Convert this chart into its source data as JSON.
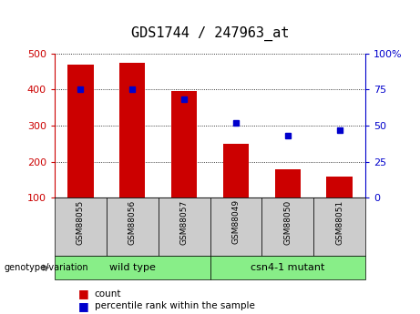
{
  "title": "GDS1744 / 247963_at",
  "categories": [
    "GSM88055",
    "GSM88056",
    "GSM88057",
    "GSM88049",
    "GSM88050",
    "GSM88051"
  ],
  "counts": [
    470,
    475,
    395,
    250,
    180,
    158
  ],
  "percentiles": [
    75,
    75,
    68,
    52,
    43,
    47
  ],
  "ylim_left": [
    100,
    500
  ],
  "ylim_right": [
    0,
    100
  ],
  "yticks_left": [
    100,
    200,
    300,
    400,
    500
  ],
  "yticks_right": [
    0,
    25,
    50,
    75,
    100
  ],
  "ytick_labels_right": [
    "0",
    "25",
    "50",
    "75",
    "100%"
  ],
  "bar_color": "#cc0000",
  "dot_color": "#0000cc",
  "bar_width": 0.5,
  "tick_bg_color": "#cccccc",
  "group_green": "#88ee88",
  "baseline": 100,
  "title_fontsize": 11,
  "axis_fontsize": 8,
  "label_fontsize": 7,
  "group_fontsize": 8,
  "legend_fontsize": 7.5
}
